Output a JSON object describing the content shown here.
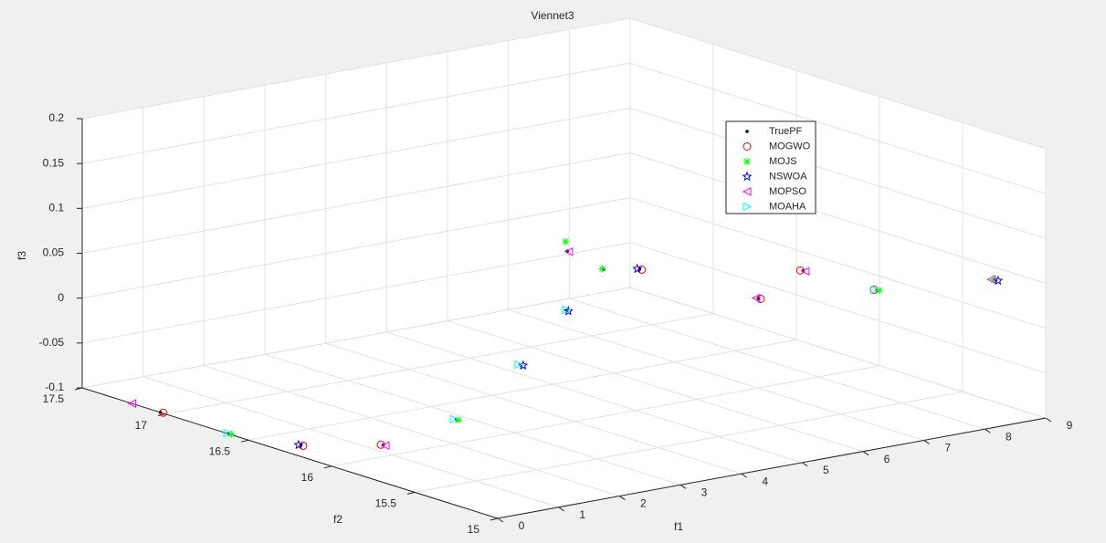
{
  "chart_data": {
    "type": "scatter3d",
    "title": "Viennet3",
    "xlabel": "f1",
    "ylabel": "f2",
    "zlabel": "f3",
    "xlim": [
      0,
      9
    ],
    "ylim": [
      15,
      17.5
    ],
    "zlim": [
      -0.1,
      0.2
    ],
    "xticks": [
      0,
      1,
      2,
      3,
      4,
      5,
      6,
      7,
      8,
      9
    ],
    "yticks": [
      15,
      15.5,
      16,
      16.5,
      17,
      17.5
    ],
    "zticks": [
      -0.1,
      -0.05,
      0,
      0.05,
      0.1,
      0.15,
      0.2
    ],
    "grid": true,
    "legend": "northeast",
    "series": [
      {
        "name": "TruePF",
        "color": "#000000",
        "marker": ".",
        "x": [
          0,
          0.01,
          0.37,
          1.23,
          2.24,
          4.12,
          5.81,
          6.95,
          5.1,
          5.55,
          6.9,
          6.41,
          7.62,
          8.29
        ],
        "y": [
          17.03,
          16.62,
          16.32,
          16.14,
          16.07,
          16.37,
          16.71,
          16.91,
          16.45,
          16.18,
          15.69,
          15.78,
          15.51,
          15.04
        ],
        "z": [
          -0.1,
          -0.1,
          -0.1,
          -0.1,
          -0.08,
          -0.06,
          -0.04,
          -0.02,
          0.05,
          0.04,
          0.05,
          0.02,
          0.03,
          0.06
        ]
      },
      {
        "name": "MOGWO",
        "color": "#ff0000",
        "marker": "o",
        "x": [
          0.02,
          0.38,
          1.22,
          5.56,
          6.88,
          6.42,
          7.6
        ],
        "y": [
          17.02,
          16.31,
          16.15,
          16.17,
          15.7,
          15.77,
          15.52
        ],
        "z": [
          -0.1,
          -0.1,
          -0.1,
          0.04,
          0.05,
          0.02,
          0.03
        ]
      },
      {
        "name": "MOJS",
        "color": "#00ff00",
        "marker": "*",
        "x": [
          0.02,
          2.25,
          6.96,
          5.1,
          7.63,
          8.28
        ],
        "y": [
          16.61,
          16.06,
          16.92,
          16.46,
          15.5,
          15.05
        ],
        "z": [
          -0.1,
          -0.08,
          -0.02,
          0.06,
          0.03,
          0.06
        ]
      },
      {
        "name": "NSWOA",
        "color": "#0000ff",
        "marker": "pentagram",
        "x": [
          0.36,
          4.13,
          5.8,
          5.54,
          8.3
        ],
        "y": [
          16.33,
          16.36,
          16.7,
          16.19,
          15.03
        ],
        "z": [
          -0.1,
          -0.06,
          -0.04,
          0.04,
          0.06
        ]
      },
      {
        "name": "MOPSO",
        "color": "#ff00ff",
        "marker": "<",
        "x": [
          0,
          1.24,
          5.1,
          6.91,
          6.4,
          8.27
        ],
        "y": [
          17.2,
          16.13,
          16.44,
          15.68,
          15.79,
          15.06
        ],
        "z": [
          -0.1,
          -0.1,
          0.05,
          0.05,
          0.02,
          0.06
        ]
      },
      {
        "name": "MOAHA",
        "color": "#00ffff",
        "marker": ">",
        "x": [
          0.01,
          2.23,
          4.11,
          5.82,
          7.61
        ],
        "y": [
          16.63,
          16.08,
          16.38,
          16.72,
          15.52
        ],
        "z": [
          -0.1,
          -0.08,
          -0.06,
          -0.04,
          0.03
        ]
      }
    ]
  }
}
